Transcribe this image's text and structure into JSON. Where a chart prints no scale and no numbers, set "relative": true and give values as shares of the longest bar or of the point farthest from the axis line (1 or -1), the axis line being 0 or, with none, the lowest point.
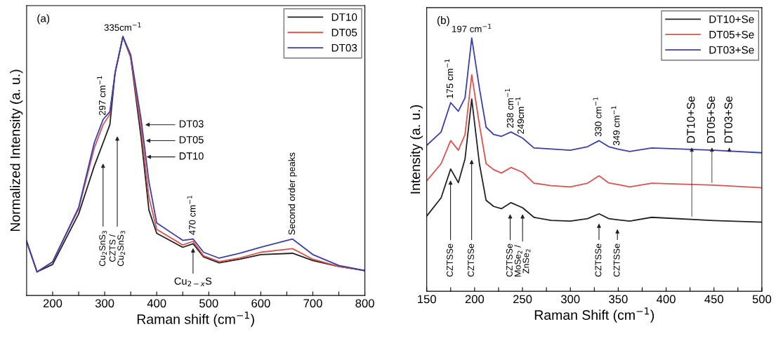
{
  "chart_data": [
    {
      "type": "line",
      "xlabel": "Raman shift (cm$^{−1}$)",
      "ylabel": "Normalized Intensity (a. u.)",
      "relative": true,
      "tick_labels": "x",
      "grid": false,
      "legend": "top right",
      "xlim": [
        150,
        800
      ],
      "xticks": [
        200,
        {
          "value": 250,
          "label": null
        },
        300,
        {
          "value": 350,
          "label": null
        },
        400,
        {
          "value": 450,
          "label": null
        },
        500,
        {
          "value": 550,
          "label": null
        },
        600,
        {
          "value": 650,
          "label": null
        },
        700,
        {
          "value": 750,
          "label": null
        },
        800
      ],
      "x": [
        150,
        170,
        200,
        250,
        280,
        297,
        310,
        320,
        335,
        350,
        370,
        385,
        400,
        450,
        470,
        490,
        520,
        560,
        600,
        661,
        700,
        750,
        800
      ],
      "series": [
        {
          "name": "DT10",
          "color": "#222222",
          "values": [
            0.209,
            0.091,
            0.12,
            0.315,
            0.5,
            0.59,
            0.66,
            0.86,
            1.0,
            0.92,
            0.61,
            0.33,
            0.24,
            0.186,
            0.2,
            0.149,
            0.126,
            0.14,
            0.158,
            0.163,
            0.135,
            0.112,
            0.096
          ]
        },
        {
          "name": "DT05",
          "color": "#d9534f",
          "values": [
            0.209,
            0.091,
            0.13,
            0.335,
            0.57,
            0.66,
            0.7,
            0.86,
            1.0,
            0.92,
            0.645,
            0.38,
            0.255,
            0.195,
            0.209,
            0.153,
            0.131,
            0.145,
            0.167,
            0.181,
            0.14,
            0.112,
            0.096
          ]
        },
        {
          "name": "DT03",
          "color": "#3b3fa8",
          "values": [
            0.209,
            0.091,
            0.13,
            0.34,
            0.59,
            0.68,
            0.71,
            0.86,
            1.0,
            0.93,
            0.68,
            0.44,
            0.28,
            0.213,
            0.218,
            0.167,
            0.144,
            0.163,
            0.186,
            0.218,
            0.158,
            0.116,
            0.096
          ]
        }
      ],
      "annotations": [
        "(a)",
        {
          "text": "335cm$^{−1}$",
          "x": 335,
          "y": 1.0
        },
        {
          "text": "297 cm$^{−1}$",
          "x": 297,
          "y": 0.68
        },
        {
          "text": "470 cm$^{−1}$",
          "x": 470,
          "y": 0.218
        },
        {
          "text": "Second order peaks",
          "x": 661,
          "y": 0.218
        },
        "Cu$_{2}$SnS$_{3}$",
        "CZTS /\nCu$_{2}$SnS$_{3}$",
        "Cu$_{2−x}$S",
        "DT03",
        "DT05",
        "DT10"
      ]
    },
    {
      "type": "line",
      "xlabel": "Raman Shift (cm$^{−1}$)",
      "ylabel": "Intensity (a. u.)",
      "relative": true,
      "tick_labels": "x",
      "grid": false,
      "legend": "top right",
      "xlim": [
        150,
        500
      ],
      "xticks": [
        150,
        {
          "value": 175,
          "label": null
        },
        200,
        {
          "value": 225,
          "label": null
        },
        250,
        {
          "value": 275,
          "label": null
        },
        300,
        {
          "value": 325,
          "label": null
        },
        350,
        {
          "value": 375,
          "label": null
        },
        400,
        {
          "value": 425,
          "label": null
        },
        450,
        {
          "value": 475,
          "label": null
        },
        500
      ],
      "x": [
        150,
        165,
        175,
        183,
        190,
        197,
        205,
        212,
        220,
        228,
        238,
        250,
        262,
        280,
        300,
        318,
        330,
        340,
        350,
        362,
        385,
        450,
        500
      ],
      "series": [
        {
          "name": "DT10+Se",
          "color": "#222222",
          "values": [
            0.297,
            0.369,
            0.483,
            0.429,
            0.523,
            0.759,
            0.504,
            0.359,
            0.335,
            0.326,
            0.35,
            0.33,
            0.292,
            0.28,
            0.277,
            0.287,
            0.306,
            0.287,
            0.282,
            0.277,
            0.292,
            0.279,
            0.273
          ]
        },
        {
          "name": "DT05+Se",
          "color": "#d9534f",
          "values": [
            0.436,
            0.504,
            0.595,
            0.557,
            0.619,
            0.855,
            0.658,
            0.504,
            0.48,
            0.467,
            0.489,
            0.47,
            0.427,
            0.417,
            0.412,
            0.427,
            0.456,
            0.428,
            0.421,
            0.412,
            0.427,
            0.419,
            0.409
          ]
        },
        {
          "name": "DT03+Se",
          "color": "#3b3fa8",
          "values": [
            0.576,
            0.629,
            0.745,
            0.711,
            0.764,
            1.0,
            0.802,
            0.648,
            0.619,
            0.612,
            0.629,
            0.605,
            0.566,
            0.562,
            0.557,
            0.571,
            0.595,
            0.571,
            0.561,
            0.552,
            0.566,
            0.557,
            0.547
          ]
        }
      ],
      "annotations": [
        "(b)",
        {
          "text": "197 cm$^{−1}$",
          "x": 197,
          "y": 1.0
        },
        {
          "text": "175 cm$^{−1}$",
          "x": 175,
          "y": 0.745
        },
        {
          "text": "238 cm$^{−1}$",
          "x": 238,
          "y": 0.629
        },
        {
          "text": "249cm$^{−1}$",
          "x": 249,
          "y": 0.605
        },
        {
          "text": "330 cm$^{−1}$",
          "x": 330,
          "y": 0.595
        },
        {
          "text": "349 cm$^{−1}$",
          "x": 349,
          "y": 0.56
        },
        "CZTSSe",
        "CZTSSe",
        "CZTSSe",
        "MoSe$_{2}$ /\nZnSe$_{2}$",
        "CZTSSe",
        "CZTSSe",
        "DT10+Se",
        "DT05+Se",
        "DT03+Se"
      ]
    }
  ]
}
